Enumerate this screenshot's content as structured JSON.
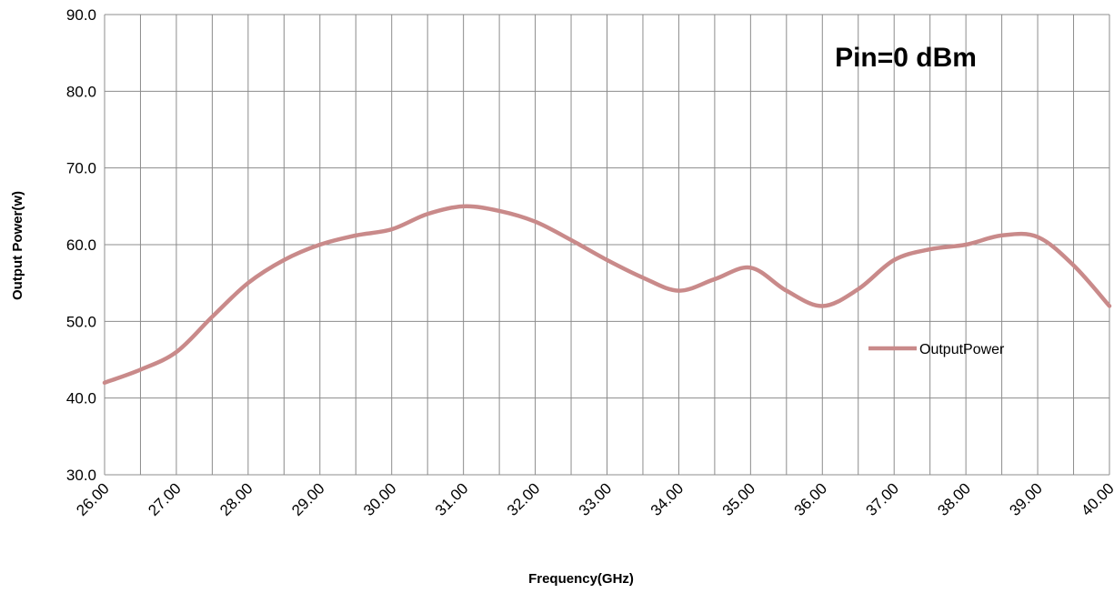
{
  "chart_data": {
    "type": "line",
    "title": "",
    "annotation": "Pin=0 dBm",
    "xlabel": "Frequency(GHz)",
    "ylabel": "Output Power(w)",
    "xlim": [
      26,
      40
    ],
    "ylim": [
      30,
      90
    ],
    "x_major_step": 1,
    "x_minor_step": 0.5,
    "y_step": 10,
    "x_tick_labels": [
      "26.00",
      "27.00",
      "28.00",
      "29.00",
      "30.00",
      "31.00",
      "32.00",
      "33.00",
      "34.00",
      "35.00",
      "36.00",
      "37.00",
      "38.00",
      "39.00",
      "40.00"
    ],
    "y_tick_labels": [
      "30.0",
      "40.0",
      "50.0",
      "60.0",
      "70.0",
      "80.0",
      "90.0"
    ],
    "grid": true,
    "legend_position": "right",
    "series": [
      {
        "name": "OutputPower",
        "color": "#C98A8A",
        "x": [
          26,
          26.5,
          27,
          27.5,
          28,
          28.5,
          29,
          29.5,
          30,
          30.5,
          31,
          31.5,
          32,
          32.5,
          33,
          33.5,
          34,
          34.5,
          35,
          35.5,
          36,
          36.5,
          37,
          37.5,
          38,
          38.5,
          39,
          39.5,
          40
        ],
        "y": [
          42,
          43.7,
          46,
          50.6,
          55,
          58,
          60,
          61.2,
          62,
          64,
          65,
          64.4,
          63,
          60.6,
          58,
          55.7,
          54,
          55.5,
          57,
          54,
          52,
          54.2,
          58,
          59.4,
          60,
          61.2,
          61,
          57.3,
          52
        ]
      }
    ]
  }
}
